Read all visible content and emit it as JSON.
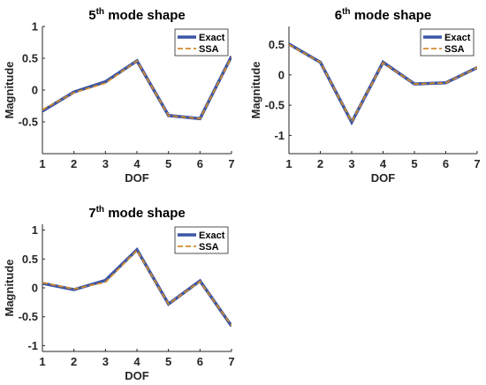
{
  "colors": {
    "exact": "#3b55a6",
    "ssa": "#d08a2a",
    "axis": "#262626",
    "background": "#ffffff"
  },
  "chart_data": [
    {
      "type": "line",
      "title": {
        "prefix": "5",
        "sup": "th",
        "suffix": " mode shape"
      },
      "xlabel": "DOF",
      "ylabel": "Magnitude",
      "xlim": [
        1,
        7
      ],
      "ylim": [
        -1,
        1
      ],
      "xticks": [
        "1",
        "2",
        "3",
        "4",
        "5",
        "6",
        "7"
      ],
      "yticks": [
        "-0.5",
        "0",
        "0.5",
        "1"
      ],
      "legend": "top-right",
      "grid": false,
      "x": [
        1,
        2,
        3,
        4,
        5,
        6,
        7
      ],
      "series": [
        {
          "name": "Exact",
          "values": [
            -0.33,
            -0.03,
            0.13,
            0.46,
            -0.4,
            -0.45,
            0.53
          ]
        },
        {
          "name": "SSA",
          "values": [
            -0.31,
            -0.04,
            0.11,
            0.46,
            -0.4,
            -0.45,
            0.52
          ]
        }
      ]
    },
    {
      "type": "line",
      "title": {
        "prefix": "6",
        "sup": "th",
        "suffix": " mode shape"
      },
      "xlabel": "DOF",
      "ylabel": "Magnitude",
      "xlim": [
        1,
        7
      ],
      "ylim": [
        -1.3,
        0.8
      ],
      "xticks": [
        "1",
        "2",
        "3",
        "4",
        "5",
        "6",
        "7"
      ],
      "yticks": [
        "-1",
        "-0.5",
        "0",
        "0.5"
      ],
      "legend": "top-right",
      "grid": false,
      "x": [
        1,
        2,
        3,
        4,
        5,
        6,
        7
      ],
      "series": [
        {
          "name": "Exact",
          "values": [
            0.51,
            0.21,
            -0.78,
            0.21,
            -0.15,
            -0.13,
            0.12
          ]
        },
        {
          "name": "SSA",
          "values": [
            0.5,
            0.21,
            -0.77,
            0.2,
            -0.15,
            -0.13,
            0.12
          ]
        }
      ]
    },
    {
      "type": "line",
      "title": {
        "prefix": "7",
        "sup": "th",
        "suffix": " mode shape"
      },
      "xlabel": "DOF",
      "ylabel": "Magnitude",
      "xlim": [
        1,
        7
      ],
      "ylim": [
        -1.1,
        1.1
      ],
      "xticks": [
        "1",
        "2",
        "3",
        "4",
        "5",
        "6",
        "7"
      ],
      "yticks": [
        "-1",
        "-0.5",
        "0",
        "0.5",
        "1"
      ],
      "legend": "top-right",
      "grid": false,
      "x": [
        1,
        2,
        3,
        4,
        5,
        6,
        7
      ],
      "series": [
        {
          "name": "Exact",
          "values": [
            0.08,
            -0.03,
            0.13,
            0.66,
            -0.28,
            0.12,
            -0.66
          ]
        },
        {
          "name": "SSA",
          "values": [
            0.09,
            -0.02,
            0.1,
            0.65,
            -0.28,
            0.11,
            -0.65
          ]
        }
      ]
    }
  ]
}
